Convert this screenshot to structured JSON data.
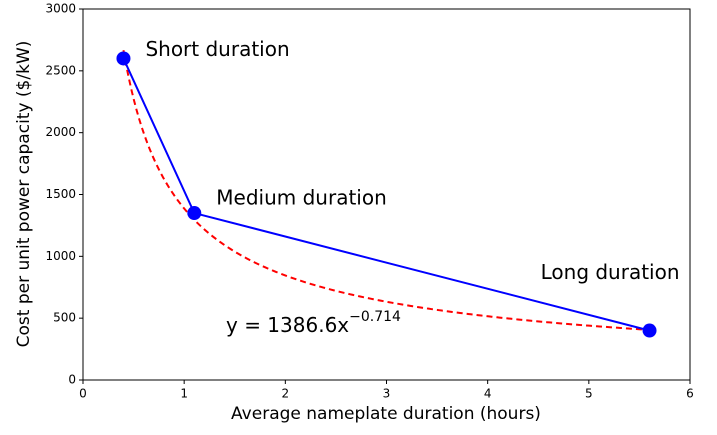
{
  "chart_data": {
    "type": "line",
    "xlabel": "Average nameplate duration (hours)",
    "ylabel": "Cost per unit power capacity ($/kW)",
    "x": [
      0.4,
      1.1,
      5.6
    ],
    "series": [
      {
        "values": [
          2600,
          1350,
          400
        ],
        "color": "#0000ff",
        "labels": [
          "Short duration",
          "Medium duration",
          "Long duration"
        ]
      }
    ],
    "fit": {
      "coefficient": 1386.6,
      "exponent": -0.714,
      "color": "#ff0000",
      "label_base": "y = 1386.6x",
      "label_exp": "−0.714"
    },
    "xlim": [
      0,
      6
    ],
    "xticks": [
      0,
      1,
      2,
      3,
      4,
      5,
      6
    ],
    "ylim": [
      0,
      3000
    ],
    "yticks": [
      0,
      500,
      1000,
      1500,
      2000,
      2500,
      3000
    ]
  }
}
